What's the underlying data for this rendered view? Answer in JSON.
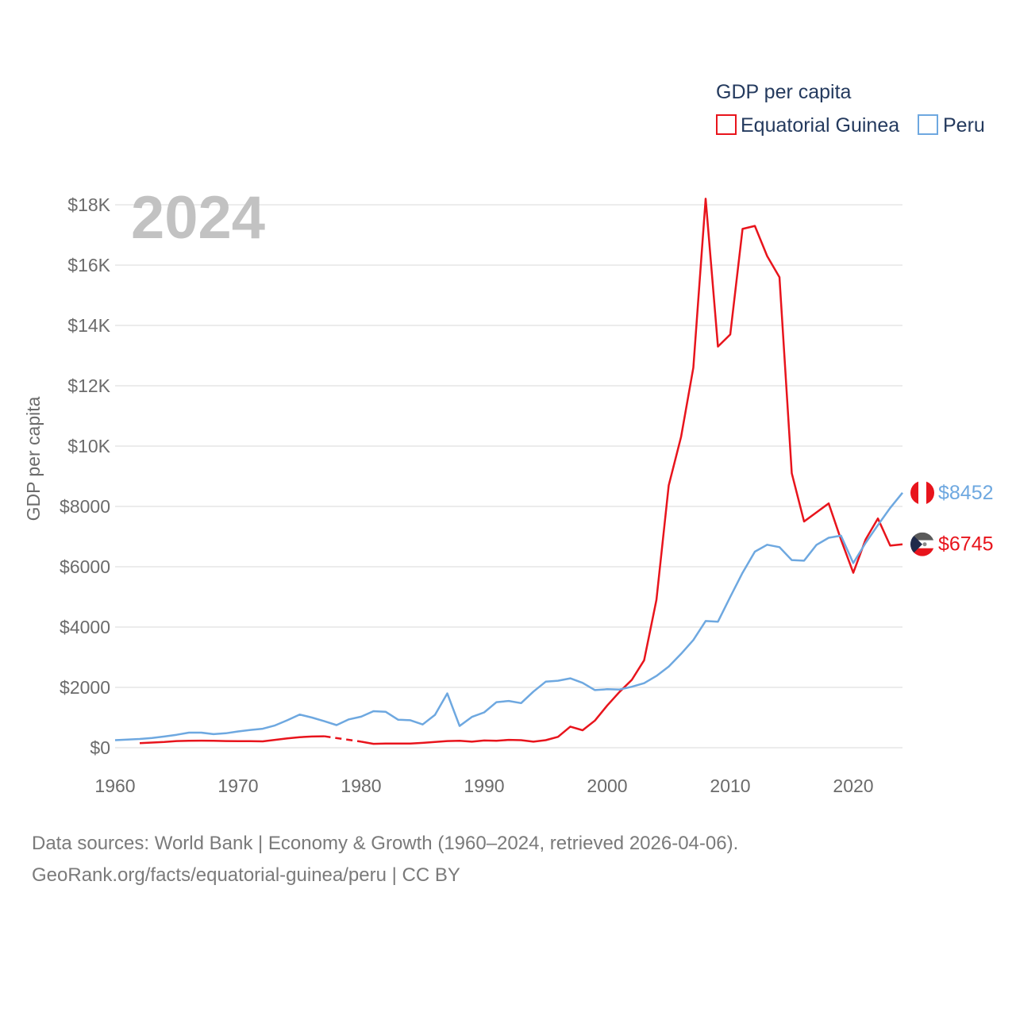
{
  "year_watermark": "2024",
  "legend": {
    "title": "GDP per capita"
  },
  "footer": {
    "line1": "Data sources: World Bank | Economy & Growth (1960–2024, retrieved 2026-04-06).",
    "line2": "GeoRank.org/facts/equatorial-guinea/peru | CC BY"
  },
  "chart_data": {
    "type": "line",
    "title": "GDP per capita",
    "xlabel": "",
    "ylabel": "GDP per capita",
    "xlim": [
      1960,
      2024
    ],
    "ylim": [
      0,
      18000
    ],
    "x_ticks": [
      1960,
      1970,
      1980,
      1990,
      2000,
      2010,
      2020
    ],
    "y_ticks": [
      {
        "value": 0,
        "label": "$0"
      },
      {
        "value": 2000,
        "label": "$2000"
      },
      {
        "value": 4000,
        "label": "$4000"
      },
      {
        "value": 6000,
        "label": "$6000"
      },
      {
        "value": 8000,
        "label": "$8000"
      },
      {
        "value": 10000,
        "label": "$10K"
      },
      {
        "value": 12000,
        "label": "$12K"
      },
      {
        "value": 14000,
        "label": "$14K"
      },
      {
        "value": 16000,
        "label": "$16K"
      },
      {
        "value": 18000,
        "label": "$18K"
      }
    ],
    "grid": true,
    "legend_position": "top-right",
    "series": [
      {
        "name": "Equatorial Guinea",
        "color": "#e8141c",
        "end_label": "$6745",
        "flag": "equatorial-guinea-flag",
        "dashed_gap": [
          1977,
          1980
        ],
        "x": [
          1962,
          1963,
          1964,
          1965,
          1966,
          1967,
          1968,
          1969,
          1970,
          1971,
          1972,
          1973,
          1974,
          1975,
          1976,
          1977,
          1980,
          1981,
          1982,
          1983,
          1984,
          1985,
          1986,
          1987,
          1988,
          1989,
          1990,
          1991,
          1992,
          1993,
          1994,
          1995,
          1996,
          1997,
          1998,
          1999,
          2000,
          2001,
          2002,
          2003,
          2004,
          2005,
          2006,
          2007,
          2008,
          2009,
          2010,
          2011,
          2012,
          2013,
          2014,
          2015,
          2016,
          2017,
          2018,
          2019,
          2020,
          2021,
          2022,
          2023,
          2024
        ],
        "y": [
          150,
          170,
          190,
          220,
          230,
          235,
          230,
          220,
          215,
          215,
          210,
          260,
          310,
          350,
          370,
          380,
          200,
          130,
          140,
          140,
          140,
          160,
          190,
          220,
          230,
          200,
          240,
          230,
          260,
          250,
          200,
          250,
          360,
          700,
          580,
          900,
          1400,
          1850,
          2250,
          2900,
          4900,
          8700,
          10300,
          12600,
          18200,
          13300,
          13700,
          17200,
          17300,
          16300,
          15600,
          9100,
          7500,
          7800,
          8100,
          6900,
          5800,
          6900,
          7600,
          6700,
          6745
        ]
      },
      {
        "name": "Peru",
        "color": "#6ea8e0",
        "end_label": "$8452",
        "flag": "peru-flag",
        "x": [
          1960,
          1961,
          1962,
          1963,
          1964,
          1965,
          1966,
          1967,
          1968,
          1969,
          1970,
          1971,
          1972,
          1973,
          1974,
          1975,
          1976,
          1977,
          1978,
          1979,
          1980,
          1981,
          1982,
          1983,
          1984,
          1985,
          1986,
          1987,
          1988,
          1989,
          1990,
          1991,
          1992,
          1993,
          1994,
          1995,
          1996,
          1997,
          1998,
          1999,
          2000,
          2001,
          2002,
          2003,
          2004,
          2005,
          2006,
          2007,
          2008,
          2009,
          2010,
          2011,
          2012,
          2013,
          2014,
          2015,
          2016,
          2017,
          2018,
          2019,
          2020,
          2021,
          2022,
          2023,
          2024
        ],
        "y": [
          250,
          270,
          290,
          320,
          370,
          430,
          500,
          500,
          450,
          480,
          540,
          590,
          630,
          740,
          910,
          1100,
          1000,
          880,
          750,
          940,
          1030,
          1210,
          1190,
          930,
          910,
          770,
          1090,
          1800,
          720,
          1020,
          1170,
          1510,
          1550,
          1480,
          1860,
          2190,
          2220,
          2300,
          2150,
          1910,
          1940,
          1930,
          2020,
          2140,
          2380,
          2690,
          3110,
          3570,
          4200,
          4180,
          5000,
          5800,
          6500,
          6730,
          6650,
          6220,
          6200,
          6720,
          6960,
          7030,
          6120,
          6790,
          7380,
          7950,
          8452
        ]
      }
    ]
  }
}
